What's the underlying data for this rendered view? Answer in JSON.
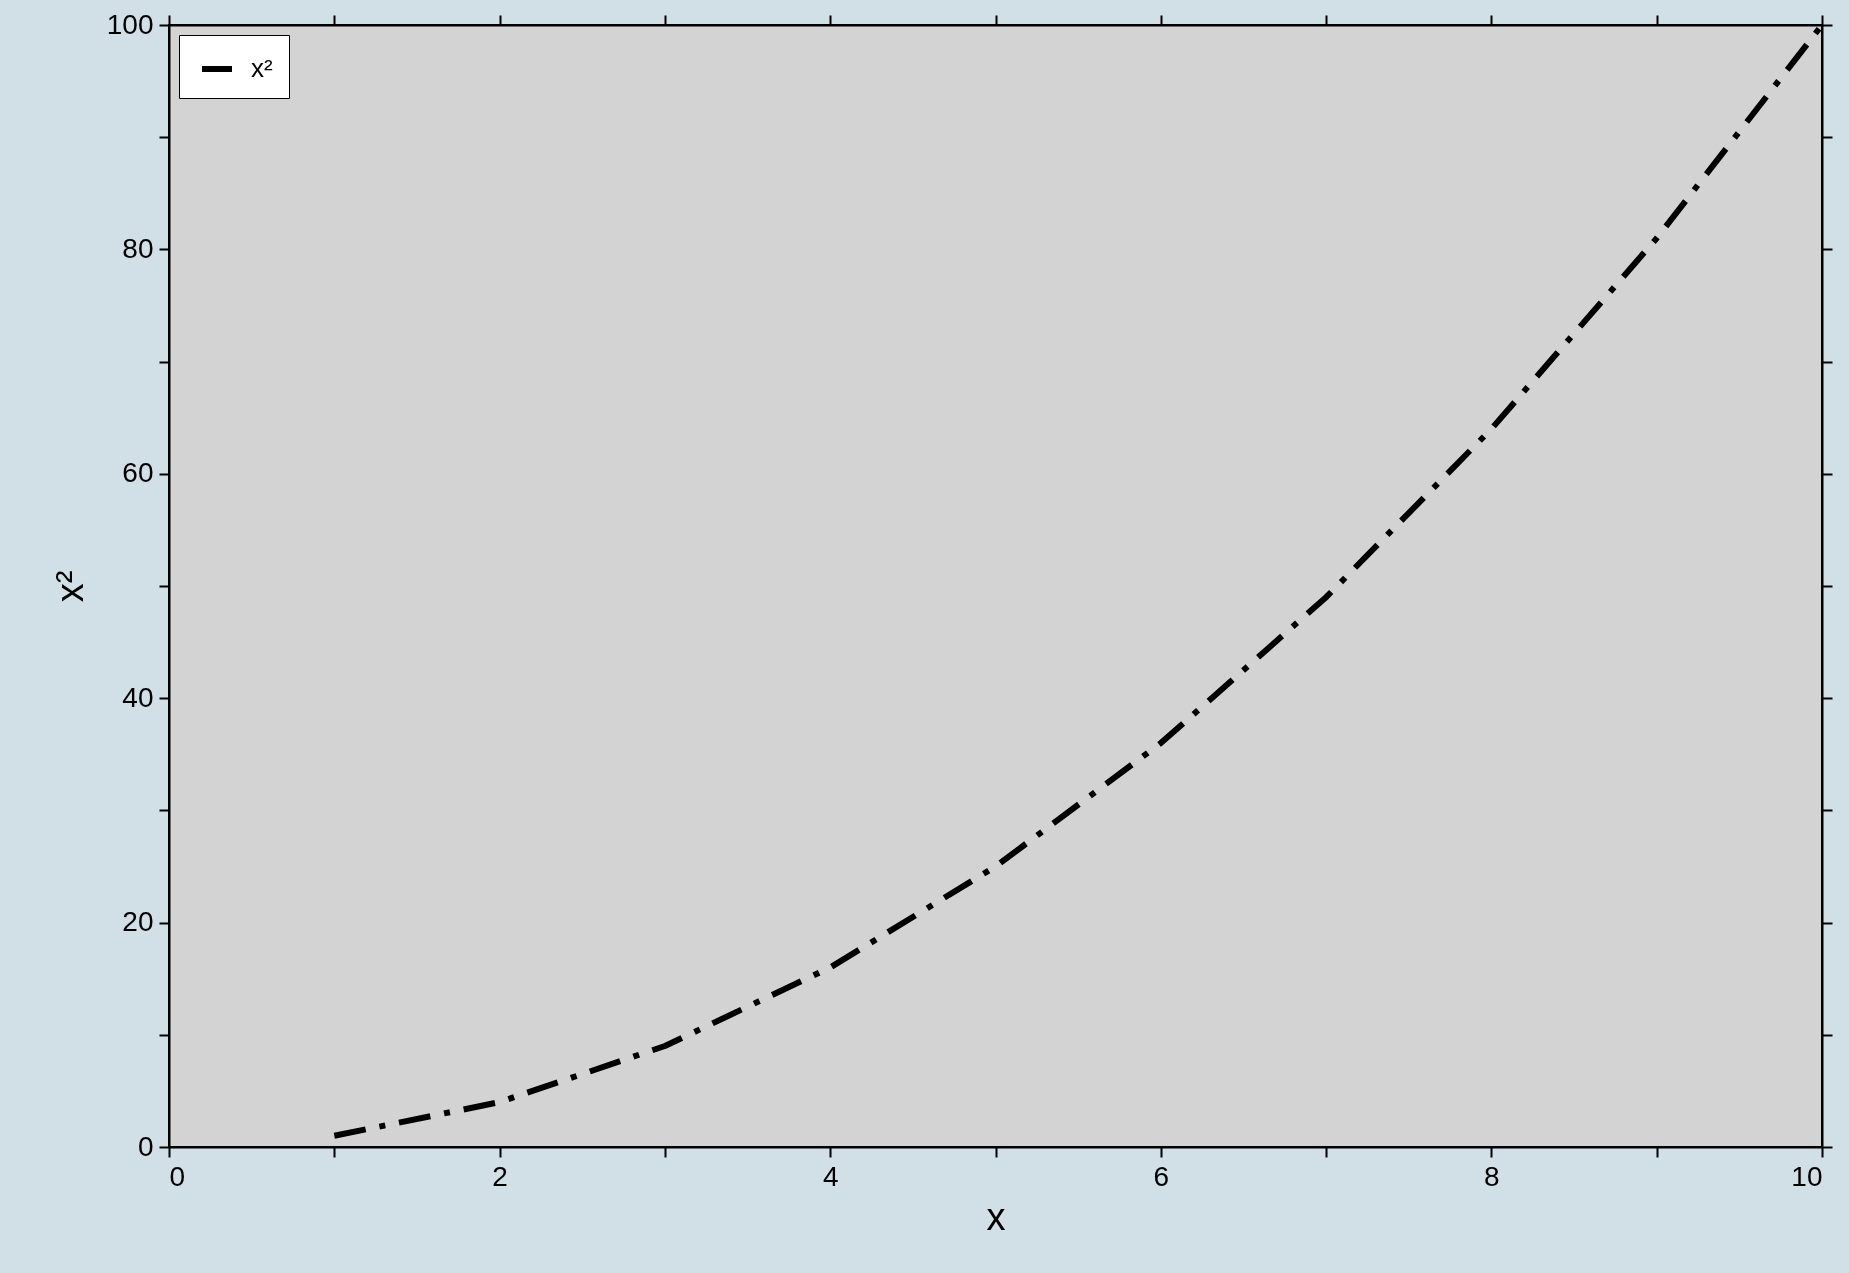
{
  "chart_data": {
    "type": "line",
    "xlabel": "x",
    "ylabel": "x²",
    "x": [
      1,
      2,
      3,
      4,
      5,
      6,
      7,
      8,
      9,
      10
    ],
    "series": [
      {
        "name": "x²",
        "color": "#000000",
        "values": [
          1,
          4,
          9,
          16,
          25,
          36,
          49,
          64,
          81,
          100
        ]
      }
    ],
    "xlim": [
      0,
      10
    ],
    "ylim": [
      0,
      100
    ],
    "xticks": [
      0,
      {
        "value": 1,
        "label": null
      },
      2,
      {
        "value": 3,
        "label": null
      },
      4,
      {
        "value": 5,
        "label": null
      },
      6,
      {
        "value": 7,
        "label": null
      },
      8,
      {
        "value": 9,
        "label": null
      },
      10
    ],
    "yticks": [
      0,
      {
        "value": 10,
        "label": null
      },
      20,
      {
        "value": 30,
        "label": null
      },
      40,
      {
        "value": 50,
        "label": null
      },
      60,
      {
        "value": 70,
        "label": null
      },
      80,
      {
        "value": 90,
        "label": null
      },
      100
    ],
    "grid": false,
    "legend": "top left",
    "line_style": "dashed",
    "marker": "none"
  }
}
